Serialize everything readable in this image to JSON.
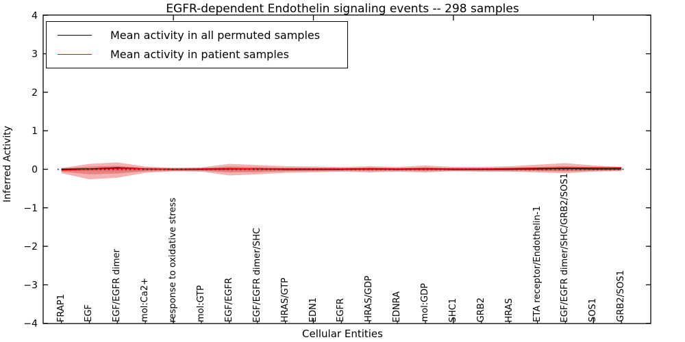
{
  "chart_data": {
    "type": "area",
    "title": "EGFR-dependent Endothelin signaling events -- 298 samples",
    "xlabel": "Cellular Entities",
    "ylabel": "Inferred Activity",
    "ylim": [
      -4,
      4
    ],
    "yticks": {
      "values": [
        4,
        3,
        2,
        1,
        0,
        -1,
        -2,
        -3,
        -4
      ],
      "labels": [
        "4",
        "3",
        "2",
        "1",
        "0",
        "−1",
        "−2",
        "−3",
        "−4"
      ]
    },
    "major_xtick_indices": [
      4,
      9,
      14,
      19
    ],
    "legend": [
      {
        "label": "Mean activity in all permuted samples",
        "color": "#000000"
      },
      {
        "label": "Mean activity in patient samples",
        "color": "#ff0000"
      }
    ],
    "legend_position": "upper left",
    "grid": false,
    "zero_line": 0,
    "entities": [
      "FRAP1",
      "EGF",
      "EGF/EGFR dimer",
      "mol:Ca2+",
      "response to oxidative stress",
      "mol:GTP",
      "EGF/EGFR",
      "EGF/EGFR dimer/SHC",
      "HRAS/GTP",
      "EDN1",
      "EGFR",
      "HRAS/GDP",
      "EDNRA",
      "mol:GDP",
      "SHC1",
      "GRB2",
      "HRAS",
      "ETA receptor/Endothelin-1",
      "EGF/EGFR dimer/SHC/GRB2/SOS1",
      "SOS1",
      "GRB2/SOS1"
    ],
    "series": [
      {
        "name": "patient band outer (upper)",
        "values": [
          0.03,
          0.14,
          0.18,
          0.07,
          0.04,
          0.05,
          0.14,
          0.11,
          0.08,
          0.07,
          0.06,
          0.08,
          0.06,
          0.1,
          0.06,
          0.06,
          0.08,
          0.12,
          0.16,
          0.1,
          0.06
        ]
      },
      {
        "name": "patient band outer (lower)",
        "values": [
          -0.1,
          -0.26,
          -0.22,
          -0.09,
          -0.05,
          -0.06,
          -0.16,
          -0.13,
          -0.09,
          -0.08,
          -0.06,
          -0.08,
          -0.06,
          -0.08,
          -0.05,
          -0.06,
          -0.06,
          -0.08,
          -0.1,
          -0.06,
          -0.04
        ]
      },
      {
        "name": "patient band inner (upper)",
        "values": [
          0.02,
          0.07,
          0.09,
          0.04,
          0.02,
          0.03,
          0.07,
          0.06,
          0.04,
          0.04,
          0.03,
          0.04,
          0.03,
          0.05,
          0.03,
          0.03,
          0.04,
          0.06,
          0.08,
          0.05,
          0.04
        ]
      },
      {
        "name": "patient band inner (lower)",
        "values": [
          -0.06,
          -0.13,
          -0.11,
          -0.05,
          -0.03,
          -0.03,
          -0.08,
          -0.07,
          -0.05,
          -0.04,
          -0.03,
          -0.04,
          -0.03,
          -0.04,
          -0.03,
          -0.03,
          -0.03,
          -0.04,
          -0.05,
          -0.03,
          -0.02
        ]
      },
      {
        "name": "Mean activity in all permuted samples",
        "values": [
          0.0,
          0.01,
          0.04,
          0.01,
          0.0,
          0.0,
          0.01,
          0.01,
          0.0,
          0.0,
          0.0,
          0.01,
          0.0,
          0.01,
          0.0,
          0.0,
          0.0,
          0.01,
          0.02,
          0.01,
          0.01
        ]
      },
      {
        "name": "Mean activity in patient samples",
        "values": [
          -0.02,
          0.0,
          0.02,
          0.01,
          0.0,
          0.01,
          0.02,
          0.01,
          0.01,
          0.01,
          0.01,
          0.02,
          0.01,
          0.02,
          0.01,
          0.01,
          0.02,
          0.03,
          0.04,
          0.04,
          0.04
        ]
      }
    ],
    "permuted_band": {
      "upper": 0.03,
      "lower": -0.05
    },
    "colors": {
      "patient_fill": "#e04040",
      "patient_line": "#ff0000",
      "permuted_line": "#000000",
      "permuted_fill": "#aaaaaa"
    }
  }
}
